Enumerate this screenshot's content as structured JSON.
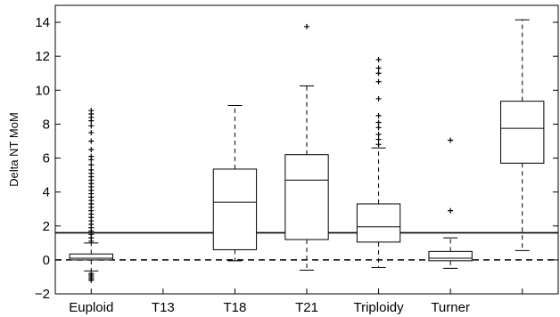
{
  "chart_data": {
    "type": "box",
    "title": "",
    "xlabel": "",
    "ylabel": "Delta NT MoM",
    "ylim": [
      -2,
      15
    ],
    "yticks": [
      -2,
      0,
      2,
      4,
      6,
      8,
      10,
      12,
      14
    ],
    "ytick_labels": [
      "−2",
      "0",
      "2",
      "4",
      "6",
      "8",
      "10",
      "12",
      "14"
    ],
    "categories": [
      "Euploid",
      "T13",
      "T18",
      "T21",
      "Triploidy",
      "Turner"
    ],
    "reference_lines": [
      {
        "value": 1.6,
        "style": "solid"
      },
      {
        "value": 0,
        "style": "dashed"
      }
    ],
    "boxes": [
      {
        "q1": 0.0,
        "median": 0.1,
        "q3": 0.35,
        "whisker_low": -0.65,
        "whisker_high": 1.0,
        "outliers_high": [
          1.1,
          1.3,
          1.5,
          1.7,
          1.9,
          2.1,
          2.3,
          2.5,
          2.7,
          2.9,
          3.1,
          3.3,
          3.5,
          3.7,
          3.9,
          4.1,
          4.3,
          4.5,
          4.7,
          4.9,
          5.1,
          5.3,
          5.6,
          5.9,
          6.1,
          6.5,
          7.0,
          7.5,
          7.9,
          8.2,
          8.4,
          8.6,
          8.8
        ],
        "outliers_low": [
          -0.8,
          -0.9,
          -1.0,
          -1.1,
          -1.2
        ]
      },
      {
        "q1": 0.6,
        "median": 3.4,
        "q3": 5.35,
        "whisker_low": -0.05,
        "whisker_high": 9.1,
        "outliers_high": [],
        "outliers_low": []
      },
      {
        "q1": 1.2,
        "median": 4.7,
        "q3": 6.2,
        "whisker_low": -0.6,
        "whisker_high": 10.25,
        "outliers_high": [
          13.75
        ],
        "outliers_low": []
      },
      {
        "q1": 1.05,
        "median": 1.95,
        "q3": 3.3,
        "whisker_low": -0.45,
        "whisker_high": 6.6,
        "outliers_high": [
          6.8,
          7.1,
          7.4,
          7.8,
          8.1,
          8.5,
          9.5,
          10.5,
          11.0,
          11.3,
          11.8
        ],
        "outliers_low": []
      },
      {
        "q1": -0.05,
        "median": 0.1,
        "q3": 0.5,
        "whisker_low": -0.5,
        "whisker_high": 1.3,
        "outliers_high": [
          2.9,
          7.05
        ],
        "outliers_low": []
      },
      {
        "q1": 5.7,
        "median": 7.75,
        "q3": 9.35,
        "whisker_low": 0.55,
        "whisker_high": 14.15,
        "outliers_high": [],
        "outliers_low": []
      }
    ]
  }
}
